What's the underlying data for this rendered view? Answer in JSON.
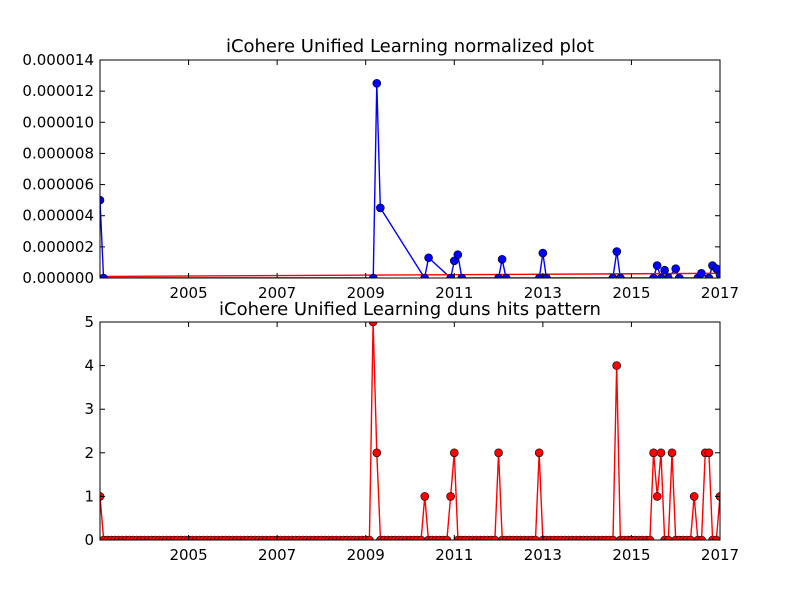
{
  "chart_data": [
    {
      "type": "line",
      "title": "iCohere Unified Learning normalized plot",
      "xlabel": "",
      "ylabel": "",
      "xlim": [
        2003.0,
        2017.0
      ],
      "ylim": [
        0,
        1.4e-05
      ],
      "x_ticks": [
        2005,
        2007,
        2009,
        2011,
        2013,
        2015,
        2017
      ],
      "x_tick_labels": [
        "2005",
        "2007",
        "2009",
        "2011",
        "2013",
        "2015",
        "2017"
      ],
      "y_ticks": [
        0,
        2e-06,
        4e-06,
        6e-06,
        8e-06,
        1e-05,
        1.2e-05,
        1.4e-05
      ],
      "y_tick_labels": [
        "0.000000",
        "0.000002",
        "0.000004",
        "0.000006",
        "0.000008",
        "0.000010",
        "0.000012",
        "0.000014"
      ],
      "grid": false,
      "colors": {
        "line": "#0000ff",
        "marker": "#0000ff",
        "trend": "#ff0000"
      },
      "trend": {
        "x": [
          2003.0,
          2017.0
        ],
        "y": [
          1e-07,
          3e-07
        ]
      },
      "series": [
        {
          "x": [
            2003.0,
            2003.08,
            2009.17,
            2009.25,
            2009.33,
            2010.33,
            2010.42,
            2010.92,
            2011.0,
            2011.08,
            2011.17,
            2012.0,
            2012.08,
            2012.17,
            2012.92,
            2013.0,
            2013.08,
            2014.58,
            2014.67,
            2014.75,
            2015.5,
            2015.58,
            2015.67,
            2015.75,
            2015.83,
            2016.0,
            2016.08,
            2016.5,
            2016.58,
            2016.75,
            2016.83,
            2016.92,
            2017.0
          ],
          "y": [
            5e-06,
            0.0,
            0.0,
            1.25e-05,
            4.5e-06,
            0.0,
            1.3e-06,
            0.0,
            1.1e-06,
            1.5e-06,
            0.0,
            0.0,
            1.2e-06,
            0.0,
            0.0,
            1.6e-06,
            0.0,
            0.0,
            1.7e-06,
            0.0,
            0.0,
            8e-07,
            0.0,
            5e-07,
            0.0,
            6e-07,
            0.0,
            0.0,
            3e-07,
            0.0,
            8e-07,
            6e-07,
            2e-07
          ]
        }
      ]
    },
    {
      "type": "line",
      "title": "iCohere Unified Learning duns hits pattern",
      "xlabel": "",
      "ylabel": "",
      "xlim": [
        2003.0,
        2017.0
      ],
      "ylim": [
        0,
        5
      ],
      "x_ticks": [
        2005,
        2007,
        2009,
        2011,
        2013,
        2015,
        2017
      ],
      "x_tick_labels": [
        "2005",
        "2007",
        "2009",
        "2011",
        "2013",
        "2015",
        "2017"
      ],
      "y_ticks": [
        0,
        1,
        2,
        3,
        4,
        5
      ],
      "y_tick_labels": [
        "0",
        "1",
        "2",
        "3",
        "4",
        "5"
      ],
      "grid": false,
      "colors": {
        "line": "#ff0000",
        "marker": "#ff0000"
      },
      "series": [
        {
          "x_start": 2003.0,
          "x_step": 0.0833333,
          "values": [
            1,
            0,
            0,
            0,
            0,
            0,
            0,
            0,
            0,
            0,
            0,
            0,
            0,
            0,
            0,
            0,
            0,
            0,
            0,
            0,
            0,
            0,
            0,
            0,
            0,
            0,
            0,
            0,
            0,
            0,
            0,
            0,
            0,
            0,
            0,
            0,
            0,
            0,
            0,
            0,
            0,
            0,
            0,
            0,
            0,
            0,
            0,
            0,
            0,
            0,
            0,
            0,
            0,
            0,
            0,
            0,
            0,
            0,
            0,
            0,
            0,
            0,
            0,
            0,
            0,
            0,
            0,
            0,
            0,
            0,
            0,
            0,
            0,
            0,
            5,
            2,
            0,
            0,
            0,
            0,
            0,
            0,
            0,
            0,
            0,
            0,
            0,
            0,
            1,
            0,
            0,
            0,
            0,
            0,
            0,
            1,
            2,
            0,
            0,
            0,
            0,
            0,
            0,
            0,
            0,
            0,
            0,
            0,
            2,
            0,
            0,
            0,
            0,
            0,
            0,
            0,
            0,
            0,
            0,
            2,
            0,
            0,
            0,
            0,
            0,
            0,
            0,
            0,
            0,
            0,
            0,
            0,
            0,
            0,
            0,
            0,
            0,
            0,
            0,
            0,
            4,
            0,
            0,
            0,
            0,
            0,
            0,
            0,
            0,
            0,
            2,
            1,
            2,
            0,
            0,
            2,
            0,
            0,
            0,
            0,
            0,
            1,
            0,
            0,
            2,
            2,
            0,
            0,
            1
          ]
        }
      ]
    }
  ]
}
